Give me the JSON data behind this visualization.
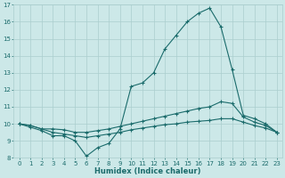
{
  "xlabel": "Humidex (Indice chaleur)",
  "xlim": [
    -0.5,
    23.5
  ],
  "ylim": [
    8,
    17
  ],
  "yticks": [
    8,
    9,
    10,
    11,
    12,
    13,
    14,
    15,
    16,
    17
  ],
  "xticks": [
    0,
    1,
    2,
    3,
    4,
    5,
    6,
    7,
    8,
    9,
    10,
    11,
    12,
    13,
    14,
    15,
    16,
    17,
    18,
    19,
    20,
    21,
    22,
    23
  ],
  "bg_color": "#cce8e8",
  "grid_color": "#aacece",
  "line_color": "#1a6b6b",
  "line1_x": [
    0,
    1,
    2,
    3,
    4,
    5,
    6,
    7,
    8,
    9,
    10,
    11,
    12,
    13,
    14,
    15,
    16,
    17,
    18,
    19,
    20,
    21,
    22,
    23
  ],
  "line1_y": [
    10.0,
    9.8,
    9.6,
    9.3,
    9.3,
    9.0,
    8.1,
    8.6,
    8.85,
    9.7,
    12.2,
    12.4,
    13.0,
    14.4,
    15.2,
    16.0,
    16.5,
    16.8,
    15.7,
    13.2,
    10.5,
    10.3,
    10.0,
    9.5
  ],
  "line2_x": [
    0,
    1,
    2,
    3,
    4,
    5,
    6,
    7,
    8,
    9,
    10,
    11,
    12,
    13,
    14,
    15,
    16,
    17,
    18,
    19,
    20,
    21,
    22,
    23
  ],
  "line2_y": [
    10.0,
    9.9,
    9.7,
    9.7,
    9.65,
    9.5,
    9.5,
    9.6,
    9.7,
    9.85,
    10.0,
    10.15,
    10.3,
    10.45,
    10.6,
    10.75,
    10.9,
    11.0,
    11.3,
    11.2,
    10.4,
    10.1,
    9.9,
    9.5
  ],
  "line3_x": [
    0,
    1,
    2,
    3,
    4,
    5,
    6,
    7,
    8,
    9,
    10,
    11,
    12,
    13,
    14,
    15,
    16,
    17,
    18,
    19,
    20,
    21,
    22,
    23
  ],
  "line3_y": [
    10.0,
    9.9,
    9.7,
    9.5,
    9.4,
    9.3,
    9.2,
    9.3,
    9.4,
    9.5,
    9.65,
    9.75,
    9.85,
    9.95,
    10.0,
    10.1,
    10.15,
    10.2,
    10.3,
    10.3,
    10.1,
    9.9,
    9.75,
    9.5
  ]
}
